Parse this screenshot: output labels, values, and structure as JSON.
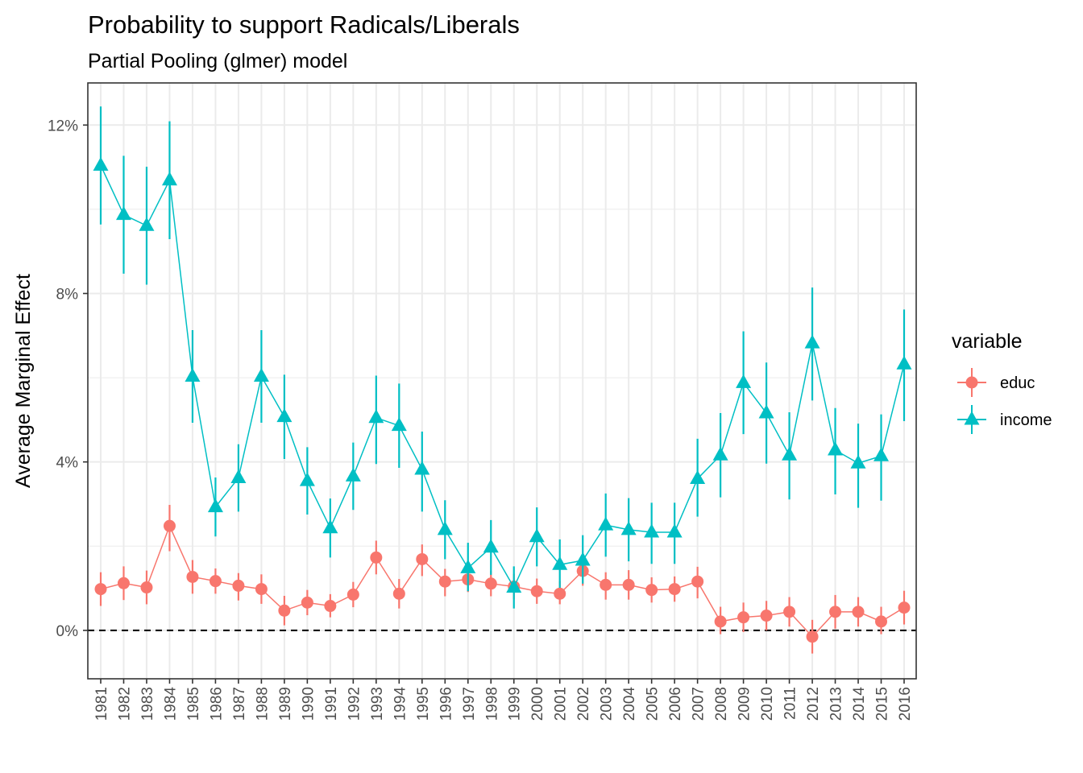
{
  "chart_data": {
    "type": "line",
    "title": "Probability to support Radicals/Liberals",
    "subtitle": "Partial Pooling (glmer) model",
    "xlabel": "",
    "ylabel": "Average Marginal Effect",
    "ylim": [
      -1.15,
      13.0
    ],
    "yticks": [
      0,
      4,
      8,
      12
    ],
    "ytick_labels": [
      "0%",
      "4%",
      "8%",
      "12%"
    ],
    "ygrid_minor": [
      2,
      6,
      10
    ],
    "grid": true,
    "reference_line": {
      "y": 0,
      "style": "dashed",
      "color": "#000000"
    },
    "categories": [
      "1981",
      "1982",
      "1983",
      "1984",
      "1985",
      "1986",
      "1987",
      "1988",
      "1989",
      "1990",
      "1991",
      "1992",
      "1993",
      "1994",
      "1995",
      "1996",
      "1997",
      "1998",
      "1999",
      "2000",
      "2001",
      "2002",
      "2003",
      "2004",
      "2005",
      "2006",
      "2007",
      "2008",
      "2009",
      "2010",
      "2011",
      "2012",
      "2013",
      "2014",
      "2015",
      "2016"
    ],
    "legend": {
      "title": "variable",
      "position": "right"
    },
    "series": [
      {
        "name": "educ",
        "color": "#F8766D",
        "marker": "circle",
        "values": [
          0.98,
          1.12,
          1.02,
          2.48,
          1.27,
          1.17,
          1.06,
          0.98,
          0.47,
          0.66,
          0.58,
          0.85,
          1.73,
          0.87,
          1.69,
          1.16,
          1.21,
          1.11,
          1.04,
          0.93,
          0.87,
          1.41,
          1.08,
          1.08,
          0.96,
          0.98,
          1.16,
          0.21,
          0.31,
          0.35,
          0.44,
          -0.15,
          0.44,
          0.44,
          0.21,
          0.54
        ],
        "lower": [
          0.58,
          0.72,
          0.62,
          1.88,
          0.87,
          0.87,
          0.71,
          0.63,
          0.12,
          0.36,
          0.31,
          0.55,
          1.33,
          0.52,
          1.29,
          0.81,
          0.91,
          0.81,
          0.74,
          0.63,
          0.62,
          1.06,
          0.73,
          0.73,
          0.66,
          0.68,
          0.76,
          -0.09,
          -0.04,
          0.0,
          0.09,
          -0.55,
          0.04,
          0.09,
          -0.09,
          0.14
        ],
        "upper": [
          1.38,
          1.52,
          1.42,
          2.98,
          1.67,
          1.47,
          1.36,
          1.33,
          0.82,
          0.96,
          0.86,
          1.15,
          2.13,
          1.22,
          2.04,
          1.46,
          1.51,
          1.41,
          1.34,
          1.23,
          1.17,
          1.76,
          1.38,
          1.43,
          1.26,
          1.28,
          1.51,
          0.56,
          0.66,
          0.7,
          0.79,
          0.25,
          0.84,
          0.79,
          0.56,
          0.94
        ]
      },
      {
        "name": "income",
        "color": "#00BFC4",
        "marker": "triangle",
        "values": [
          11.04,
          9.87,
          9.61,
          10.69,
          6.03,
          2.93,
          3.62,
          6.03,
          5.07,
          3.55,
          2.43,
          3.66,
          5.05,
          4.86,
          3.82,
          2.39,
          1.48,
          1.97,
          1.02,
          2.22,
          1.56,
          1.66,
          2.5,
          2.39,
          2.33,
          2.33,
          3.6,
          4.16,
          5.88,
          5.16,
          4.16,
          6.82,
          4.28,
          3.97,
          4.14,
          6.32
        ],
        "lower": [
          9.64,
          8.47,
          8.21,
          9.29,
          4.93,
          2.23,
          2.82,
          4.93,
          4.07,
          2.75,
          1.73,
          2.86,
          3.95,
          3.86,
          2.82,
          1.69,
          0.93,
          1.32,
          0.52,
          1.52,
          1.01,
          1.11,
          1.75,
          1.64,
          1.58,
          1.58,
          2.7,
          3.16,
          4.66,
          3.96,
          3.11,
          5.46,
          3.23,
          2.91,
          3.08,
          4.97
        ],
        "upper": [
          12.44,
          11.27,
          11.01,
          12.09,
          7.13,
          3.63,
          4.42,
          7.13,
          6.07,
          4.35,
          3.13,
          4.46,
          6.05,
          5.86,
          4.72,
          3.09,
          2.08,
          2.62,
          1.52,
          2.92,
          2.16,
          2.26,
          3.25,
          3.14,
          3.03,
          3.03,
          4.55,
          5.16,
          7.1,
          6.36,
          5.18,
          8.14,
          5.28,
          4.91,
          5.13,
          7.62
        ]
      }
    ]
  }
}
